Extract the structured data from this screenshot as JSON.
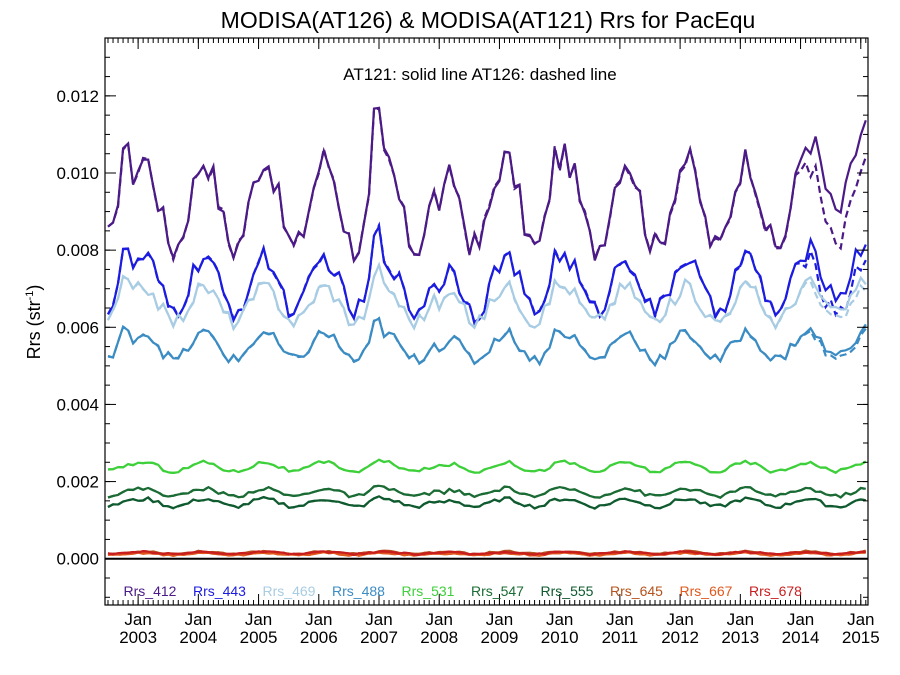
{
  "chart_data": {
    "type": "line",
    "title": "MODISA(AT126) & MODISA(AT121)  Rrs for PacEqu",
    "annotation": "AT121: solid line   AT126: dashed line",
    "ylabel_main": "Rrs (str",
    "ylabel_sup": "-1",
    "ylabel_close": ")",
    "xlabel": "",
    "ylim": [
      -0.0012,
      0.0135
    ],
    "xlim": [
      2002.45,
      2015.12
    ],
    "yticks": [
      "0.000",
      "0.002",
      "0.004",
      "0.006",
      "0.008",
      "0.010",
      "0.012"
    ],
    "xticks": [
      {
        "month": "Jan",
        "year": "2003"
      },
      {
        "month": "Jan",
        "year": "2004"
      },
      {
        "month": "Jan",
        "year": "2005"
      },
      {
        "month": "Jan",
        "year": "2006"
      },
      {
        "month": "Jan",
        "year": "2007"
      },
      {
        "month": "Jan",
        "year": "2008"
      },
      {
        "month": "Jan",
        "year": "2009"
      },
      {
        "month": "Jan",
        "year": "2010"
      },
      {
        "month": "Jan",
        "year": "2011"
      },
      {
        "month": "Jan",
        "year": "2012"
      },
      {
        "month": "Jan",
        "year": "2013"
      },
      {
        "month": "Jan",
        "year": "2014"
      },
      {
        "month": "Jan",
        "year": "2015"
      }
    ],
    "legend_placement": "bottom inside plot",
    "zero_line": true,
    "series": [
      {
        "name": "Rrs_412",
        "color": "#4b1a87",
        "base": 0.0092,
        "amp": 0.00115,
        "spike": 0.0022,
        "noise": 0.0004,
        "late_drift": 0.0009
      },
      {
        "name": "Rrs_443",
        "color": "#1c1ce0",
        "base": 0.0071,
        "amp": 0.0007,
        "spike": 0.0013,
        "noise": 0.00028,
        "late_drift": 0.0004
      },
      {
        "name": "Rrs_469",
        "color": "#a8cce3",
        "base": 0.0066,
        "amp": 0.00045,
        "spike": 0.0009,
        "noise": 0.0002,
        "late_drift": 0.0002
      },
      {
        "name": "Rrs_488",
        "color": "#3c8cc4",
        "base": 0.0055,
        "amp": 0.00035,
        "spike": 0.0006,
        "noise": 0.00015,
        "late_drift": 0.0001
      },
      {
        "name": "Rrs_531",
        "color": "#3ed03a",
        "base": 0.00238,
        "amp": 0.00012,
        "spike": 0.0001,
        "noise": 5e-05,
        "late_drift": 0.0
      },
      {
        "name": "Rrs_547",
        "color": "#1a6b34",
        "base": 0.00172,
        "amp": 0.0001,
        "spike": 0.0001,
        "noise": 5e-05,
        "late_drift": 0.0
      },
      {
        "name": "Rrs_555",
        "color": "#0f5a2e",
        "base": 0.00145,
        "amp": 0.0001,
        "spike": 0.0001,
        "noise": 5e-05,
        "late_drift": 0.0
      },
      {
        "name": "Rrs_645",
        "color": "#b5531c",
        "base": 0.00016,
        "amp": 3e-05,
        "spike": 0.0,
        "noise": 2e-05,
        "late_drift": 0.0
      },
      {
        "name": "Rrs_667",
        "color": "#e0581c",
        "base": 0.00012,
        "amp": 3e-05,
        "spike": 0.0,
        "noise": 2e-05,
        "late_drift": 0.0
      },
      {
        "name": "Rrs_678",
        "color": "#c81e1e",
        "base": 0.00015,
        "amp": 3e-05,
        "spike": 0.0,
        "noise": 2e-05,
        "late_drift": 0.0
      }
    ]
  }
}
